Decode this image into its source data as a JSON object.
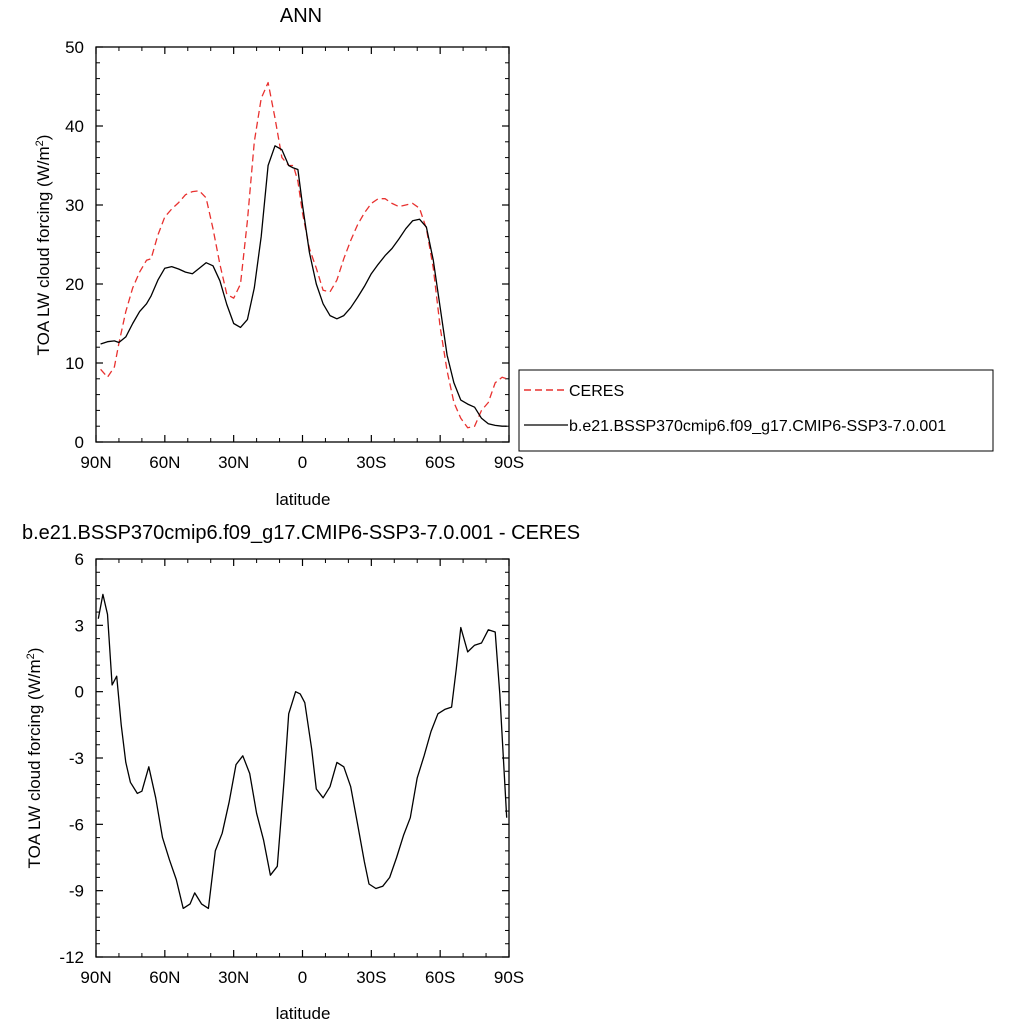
{
  "chart_data": [
    {
      "type": "line",
      "title": "ANN",
      "xlabel": "latitude",
      "ylabel": "TOA LW cloud forcing (W/m",
      "ylabel_sup": "2",
      "ylabel_close": ")",
      "x_ticks": [
        -90,
        -60,
        -30,
        0,
        30,
        60,
        90
      ],
      "x_tick_labels": [
        "90N",
        "60N",
        "30N",
        "0",
        "30S",
        "60S",
        "90S"
      ],
      "xlim": [
        -90,
        90
      ],
      "ylim": [
        0,
        50
      ],
      "y_ticks": [
        0,
        10,
        20,
        30,
        40,
        50
      ],
      "y_tick_labels": [
        "0",
        "10",
        "20",
        "30",
        "40",
        "50"
      ],
      "grid": false,
      "legend": "right",
      "series": [
        {
          "name": "CERES",
          "color": "#e8312f",
          "dash": "dashed",
          "x": [
            -88,
            -85,
            -82,
            -80,
            -77,
            -74,
            -71,
            -68,
            -66,
            -63,
            -60,
            -57,
            -54,
            -51,
            -48,
            -45,
            -42,
            -39,
            -36,
            -33,
            -30,
            -27,
            -24,
            -21,
            -18,
            -15,
            -12,
            -9,
            -6,
            -4,
            -2,
            0,
            3,
            6,
            9,
            12,
            15,
            18,
            21,
            24,
            27,
            30,
            33,
            36,
            39,
            42,
            45,
            48,
            51,
            54,
            57,
            60,
            63,
            66,
            69,
            72,
            75,
            78,
            81,
            84,
            87,
            89
          ],
          "values": [
            9.2,
            8.2,
            9.5,
            12.5,
            16.5,
            19.5,
            21.5,
            23,
            23.2,
            26.2,
            28.5,
            29.5,
            30.3,
            31.3,
            31.7,
            31.8,
            30.9,
            27,
            22.5,
            18.7,
            18.2,
            20,
            28,
            38,
            43.5,
            45.5,
            41,
            36,
            35,
            35,
            33,
            29,
            24.5,
            22,
            19.2,
            19,
            20.5,
            23.2,
            25.5,
            27.5,
            29,
            30.2,
            30.8,
            30.8,
            30.2,
            29.8,
            30,
            30.2,
            29.6,
            27,
            22,
            14.5,
            9,
            5,
            3,
            1.8,
            2,
            4,
            5,
            7.5,
            8.2,
            8
          ]
        },
        {
          "name": "b.e21.BSSP370cmip6.f09_g17.CMIP6-SSP3-7.0.001",
          "color": "#000000",
          "dash": "solid",
          "x": [
            -88,
            -85,
            -82,
            -80,
            -77,
            -74,
            -71,
            -68,
            -66,
            -63,
            -60,
            -57,
            -54,
            -51,
            -48,
            -45,
            -42,
            -39,
            -36,
            -33,
            -30,
            -27,
            -24,
            -21,
            -18,
            -15,
            -12,
            -9,
            -6,
            -4,
            -2,
            0,
            3,
            6,
            9,
            12,
            15,
            18,
            21,
            24,
            27,
            30,
            33,
            36,
            39,
            42,
            45,
            48,
            51,
            54,
            57,
            60,
            63,
            66,
            69,
            72,
            75,
            78,
            81,
            84,
            87,
            89
          ],
          "values": [
            12.4,
            12.7,
            12.8,
            12.6,
            13.3,
            15,
            16.5,
            17.5,
            18.5,
            20.5,
            22,
            22.2,
            21.9,
            21.5,
            21.3,
            22,
            22.7,
            22.3,
            20.4,
            17.4,
            15,
            14.5,
            15.5,
            19.5,
            26,
            35,
            37.5,
            37,
            35,
            34.7,
            34.5,
            30,
            24,
            20,
            17.5,
            16,
            15.6,
            16,
            17,
            18.3,
            19.7,
            21.3,
            22.5,
            23.6,
            24.5,
            25.7,
            27,
            28,
            28.2,
            27.2,
            23,
            17,
            11,
            7.5,
            5.3,
            4.8,
            4.4,
            3,
            2.3,
            2.1,
            2,
            2
          ]
        }
      ]
    },
    {
      "type": "line",
      "title": "b.e21.BSSP370cmip6.f09_g17.CMIP6-SSP3-7.0.001 - CERES",
      "xlabel": "latitude",
      "ylabel": "TOA LW cloud forcing (W/m",
      "ylabel_sup": "2",
      "ylabel_close": ")",
      "x_ticks": [
        -90,
        -60,
        -30,
        0,
        30,
        60,
        90
      ],
      "x_tick_labels": [
        "90N",
        "60N",
        "30N",
        "0",
        "30S",
        "60S",
        "90S"
      ],
      "xlim": [
        -90,
        90
      ],
      "ylim": [
        -12,
        6
      ],
      "y_ticks": [
        -12,
        -9,
        -6,
        -3,
        0,
        3,
        6
      ],
      "y_tick_labels": [
        "-12",
        "-9",
        "-6",
        "-3",
        "0",
        "3",
        "6"
      ],
      "grid": false,
      "series": [
        {
          "color": "#000000",
          "dash": "solid",
          "x": [
            -89,
            -87,
            -85,
            -83,
            -81,
            -79,
            -77,
            -75,
            -72,
            -70,
            -67,
            -64,
            -61,
            -58,
            -55,
            -52,
            -49,
            -47,
            -44,
            -41,
            -38,
            -35,
            -32,
            -29,
            -26,
            -23,
            -20,
            -17,
            -14,
            -11,
            -8,
            -6,
            -3,
            -1,
            1,
            4,
            6,
            9,
            12,
            15,
            18,
            21,
            24,
            27,
            29,
            32,
            35,
            38,
            41,
            44,
            47,
            50,
            53,
            56,
            59,
            62,
            65,
            67,
            69,
            72,
            75,
            78,
            81,
            84,
            86,
            89
          ],
          "values": [
            3.3,
            4.4,
            3.5,
            0.3,
            0.7,
            -1.5,
            -3.2,
            -4.1,
            -4.6,
            -4.5,
            -3.4,
            -4.8,
            -6.6,
            -7.6,
            -8.5,
            -9.8,
            -9.6,
            -9.1,
            -9.6,
            -9.8,
            -7.2,
            -6.4,
            -5,
            -3.3,
            -2.9,
            -3.7,
            -5.5,
            -6.7,
            -8.3,
            -7.9,
            -4,
            -1,
            0,
            -0.1,
            -0.5,
            -2.6,
            -4.4,
            -4.8,
            -4.3,
            -3.2,
            -3.4,
            -4.3,
            -6,
            -7.7,
            -8.7,
            -8.9,
            -8.8,
            -8.4,
            -7.5,
            -6.5,
            -5.7,
            -3.9,
            -2.9,
            -1.8,
            -1,
            -0.8,
            -0.7,
            1,
            2.9,
            1.8,
            2.1,
            2.2,
            2.8,
            2.7,
            -0.1,
            -5.7
          ]
        }
      ]
    }
  ]
}
